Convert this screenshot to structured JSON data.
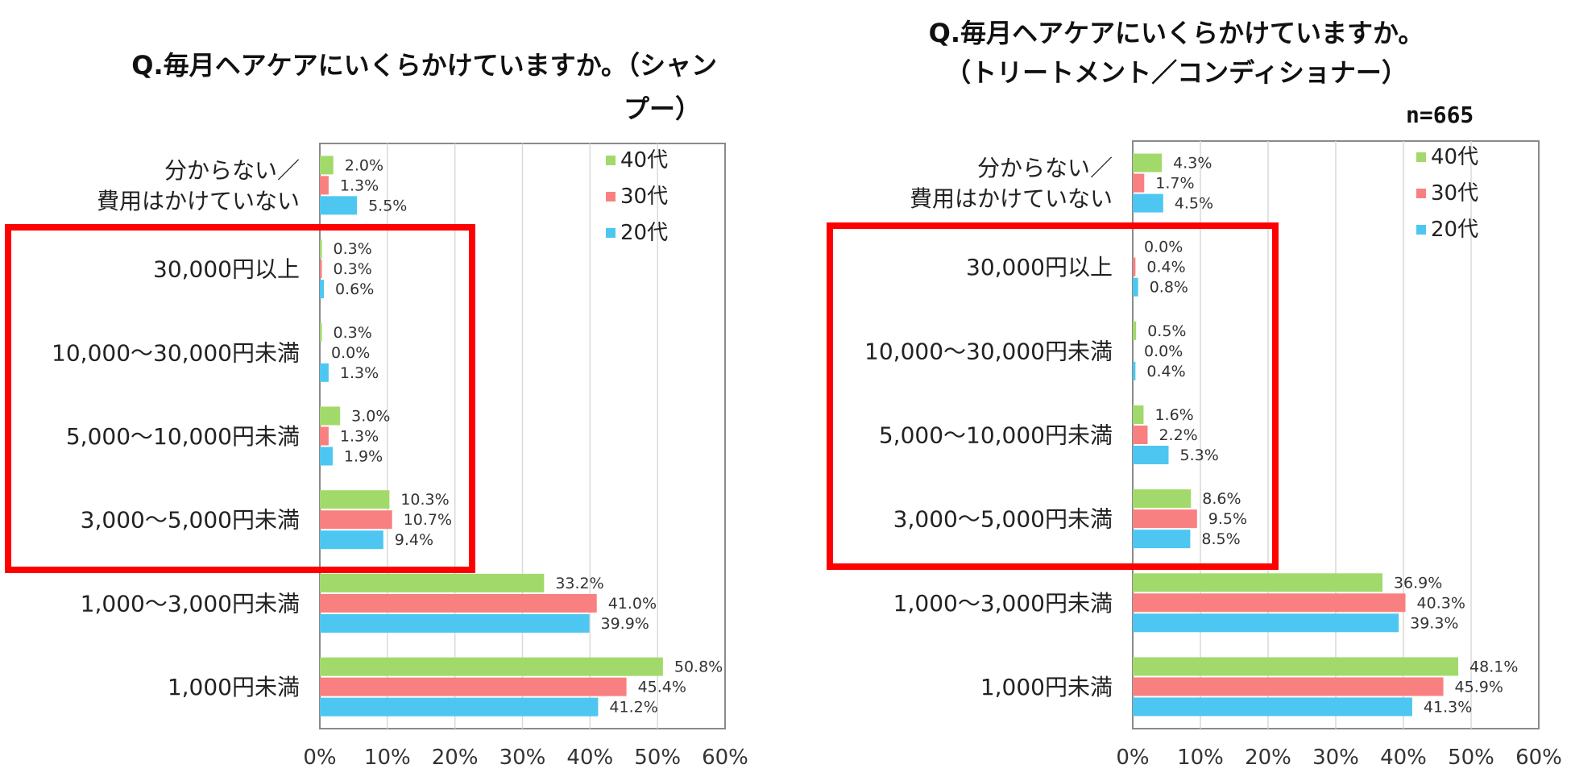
{
  "series_colors": {
    "40代": "#a2d96b",
    "30代": "#f98080",
    "20代": "#4dc7f2"
  },
  "highlight_color": "#ff0000",
  "chart_data": [
    {
      "type": "bar",
      "orientation": "horizontal",
      "title_lines": [
        "Q.毎月ヘアケアにいくらかけていますか。（シャン",
        "プー）"
      ],
      "categories": [
        "分からない／\n費用はかけていない",
        "30,000円以上",
        "10,000～30,000円未満",
        "5,000～10,000円未満",
        "3,000～5,000円未満",
        "1,000～3,000円未満",
        "1,000円未満"
      ],
      "series": [
        {
          "name": "40代",
          "values": [
            2.0,
            0.3,
            0.3,
            3.0,
            10.3,
            33.2,
            50.8
          ]
        },
        {
          "name": "30代",
          "values": [
            1.3,
            0.3,
            0.0,
            1.3,
            10.7,
            41.0,
            45.4
          ]
        },
        {
          "name": "20代",
          "values": [
            5.5,
            0.6,
            1.3,
            1.9,
            9.4,
            39.9,
            41.2
          ]
        }
      ],
      "xlim": [
        0,
        60
      ],
      "xticks": [
        "0%",
        "10%",
        "20%",
        "30%",
        "40%",
        "50%",
        "60%"
      ],
      "legend": [
        "40代",
        "30代",
        "20代"
      ],
      "legend_position": "top-right",
      "highlighted_categories": [
        "30,000円以上",
        "10,000～30,000円未満",
        "5,000～10,000円未満",
        "3,000～5,000円未満"
      ]
    },
    {
      "type": "bar",
      "orientation": "horizontal",
      "title_lines": [
        "Q.毎月ヘアケアにいくらかけていますか。",
        "（トリートメント／コンディショナー）"
      ],
      "n_label": "n=665",
      "categories": [
        "分からない／\n費用はかけていない",
        "30,000円以上",
        "10,000～30,000円未満",
        "5,000～10,000円未満",
        "3,000～5,000円未満",
        "1,000～3,000円未満",
        "1,000円未満"
      ],
      "series": [
        {
          "name": "40代",
          "values": [
            4.3,
            0.0,
            0.5,
            1.6,
            8.6,
            36.9,
            48.1
          ]
        },
        {
          "name": "30代",
          "values": [
            1.7,
            0.4,
            0.0,
            2.2,
            9.5,
            40.3,
            45.9
          ]
        },
        {
          "name": "20代",
          "values": [
            4.5,
            0.8,
            0.4,
            5.3,
            8.5,
            39.3,
            41.3
          ]
        }
      ],
      "xlim": [
        0,
        60
      ],
      "xticks": [
        "0%",
        "10%",
        "20%",
        "30%",
        "40%",
        "50%",
        "60%"
      ],
      "legend": [
        "40代",
        "30代",
        "20代"
      ],
      "legend_position": "top-right",
      "highlighted_categories": [
        "30,000円以上",
        "10,000～30,000円未満",
        "5,000～10,000円未満",
        "3,000～5,000円未満"
      ]
    }
  ]
}
